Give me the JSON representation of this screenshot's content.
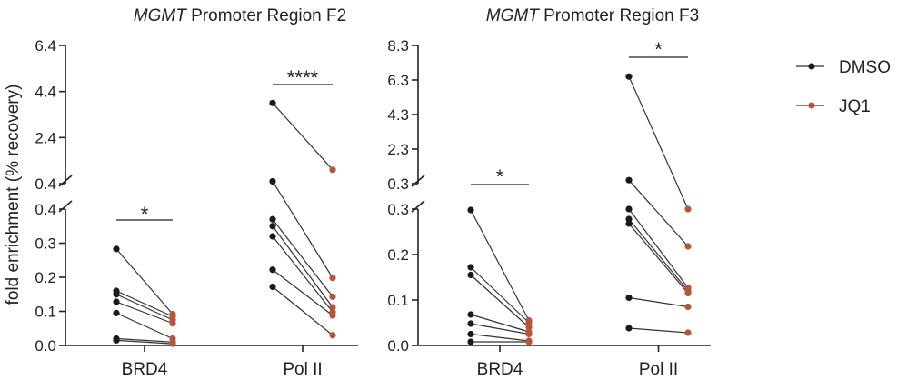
{
  "ylabel": "fold enrichment (% recovery)",
  "legend": {
    "placement": "right",
    "entries": [
      {
        "label": "DMSO",
        "color": "#1a1a1a"
      },
      {
        "label": "JQ1",
        "color": "#b5553a"
      }
    ]
  },
  "chart_data": [
    {
      "type": "scatter",
      "title_gene": "MGMT",
      "title_rest": " Promoter Region F2",
      "categories": [
        "BRD4",
        "Pol II"
      ],
      "break_axis": {
        "lower": {
          "ylim": [
            0,
            0.4
          ],
          "ticks": [
            "0.0",
            "0.1",
            "0.2",
            "0.3",
            "0.4"
          ]
        },
        "upper": {
          "ylim": [
            0.4,
            6.4
          ],
          "ticks": [
            "0.4",
            "2.4",
            "4.4",
            "6.4"
          ]
        }
      },
      "pairs": [
        {
          "category": "BRD4",
          "dmso": [
            0.283,
            0.16,
            0.15,
            0.128,
            0.095,
            0.02,
            0.015
          ],
          "jq1": [
            0.092,
            0.085,
            0.075,
            0.065,
            0.02,
            0.01,
            0.005
          ]
        },
        {
          "category": "Pol II",
          "dmso": [
            3.9,
            0.5,
            0.37,
            0.35,
            0.32,
            0.222,
            0.172
          ],
          "jq1": [
            1.0,
            0.198,
            0.143,
            0.112,
            0.098,
            0.088,
            0.03
          ]
        }
      ],
      "significance": [
        {
          "category": "BRD4",
          "label": "*"
        },
        {
          "category": "Pol II",
          "label": "****"
        }
      ]
    },
    {
      "type": "scatter",
      "title_gene": "MGMT",
      "title_rest": " Promoter Region F3",
      "categories": [
        "BRD4",
        "Pol II"
      ],
      "break_axis": {
        "lower": {
          "ylim": [
            0,
            0.3
          ],
          "ticks": [
            "0.0",
            "0.1",
            "0.2",
            "0.3"
          ]
        },
        "upper": {
          "ylim": [
            0.3,
            8.3
          ],
          "ticks": [
            "0.3",
            "2.3",
            "4.3",
            "6.3",
            "8.3"
          ]
        }
      },
      "pairs": [
        {
          "category": "BRD4",
          "dmso": [
            0.298,
            0.172,
            0.155,
            0.068,
            0.048,
            0.025,
            0.008
          ],
          "jq1": [
            0.055,
            0.05,
            0.04,
            0.03,
            0.025,
            0.01,
            0.008
          ]
        },
        {
          "category": "Pol II",
          "dmso": [
            6.5,
            0.5,
            0.3,
            0.278,
            0.268,
            0.105,
            0.038
          ],
          "jq1": [
            0.3,
            0.218,
            0.127,
            0.12,
            0.115,
            0.085,
            0.028
          ]
        }
      ],
      "significance": [
        {
          "category": "BRD4",
          "label": "*"
        },
        {
          "category": "Pol II",
          "label": "*"
        }
      ]
    }
  ]
}
